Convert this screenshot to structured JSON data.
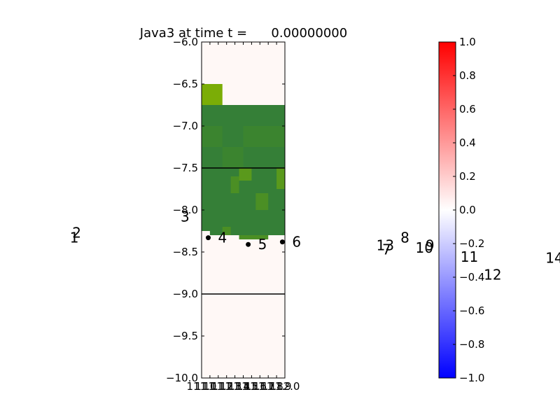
{
  "chart_data": {
    "type": "heatmap",
    "title": "Java3 at time t =      0.00000000",
    "xlabel": "",
    "ylabel": "",
    "xlim": [
      111.0,
      112.0
    ],
    "ylim": [
      -10.0,
      -6.0
    ],
    "x_tick_labels": [
      "111.0",
      "111.1",
      "111.2",
      "111.3",
      "111.4",
      "111.5",
      "111.6",
      "111.7",
      "111.8",
      "111.9",
      "112.0"
    ],
    "y_ticks": [
      -6.0,
      -6.5,
      -7.0,
      -7.5,
      -8.0,
      -8.5,
      -9.0,
      -9.5,
      -10.0
    ],
    "y_tick_labels": [
      "−6.0",
      "−6.5",
      "−7.0",
      "−7.5",
      "−8.0",
      "−8.5",
      "−9.0",
      "−9.5",
      "−10.0"
    ],
    "background_color": "#fff8f6",
    "patches": [
      {
        "x0": 111.0,
        "x1": 111.25,
        "y0": -6.75,
        "y1": -6.5,
        "color": "#7bad06"
      },
      {
        "x0": 111.0,
        "x1": 112.0,
        "y0": -7.5,
        "y1": -6.75,
        "color": "#357f37"
      },
      {
        "x0": 111.0,
        "x1": 111.25,
        "y0": -7.25,
        "y1": -7.0,
        "color": "#3b842f"
      },
      {
        "x0": 111.5,
        "x1": 112.0,
        "y0": -7.25,
        "y1": -7.0,
        "color": "#3b842f"
      },
      {
        "x0": 111.25,
        "x1": 111.5,
        "y0": -7.5,
        "y1": -7.25,
        "color": "#3b842f"
      },
      {
        "x0": 111.0,
        "x1": 112.0,
        "y0": -8.25,
        "y1": -7.5,
        "color": "#357f37"
      },
      {
        "x0": 111.1,
        "x1": 112.0,
        "y0": -8.3,
        "y1": -8.25,
        "color": "#357f37"
      },
      {
        "x0": 111.45,
        "x1": 111.8,
        "y0": -8.35,
        "y1": -8.3,
        "color": "#4b8f24"
      },
      {
        "x0": 111.45,
        "x1": 111.6,
        "y0": -7.65,
        "y1": -7.5,
        "color": "#5a991c"
      },
      {
        "x0": 111.9,
        "x1": 112.0,
        "y0": -7.75,
        "y1": -7.5,
        "color": "#5a991c"
      },
      {
        "x0": 111.35,
        "x1": 111.45,
        "y0": -7.8,
        "y1": -7.6,
        "color": "#4b8f24"
      },
      {
        "x0": 111.65,
        "x1": 111.8,
        "y0": -8.0,
        "y1": -7.8,
        "color": "#4b8f24"
      },
      {
        "x0": 111.25,
        "x1": 111.35,
        "y0": -8.3,
        "y1": -8.2,
        "color": "#4b8f24"
      }
    ],
    "hlines": [
      -7.5,
      -9.0
    ],
    "gauges": [
      {
        "label": "1",
        "x": 109.3,
        "y": -8.33,
        "marker": false
      },
      {
        "label": "2",
        "x": 109.33,
        "y": -8.27,
        "marker": false
      },
      {
        "label": "3",
        "x": 110.63,
        "y": -8.08,
        "marker": false
      },
      {
        "label": "4",
        "x": 111.08,
        "y": -8.33,
        "marker": true
      },
      {
        "label": "5",
        "x": 111.56,
        "y": -8.41,
        "marker": true
      },
      {
        "label": "6",
        "x": 111.97,
        "y": -8.38,
        "marker": true
      },
      {
        "label": "7",
        "x": 113.05,
        "y": -8.47,
        "marker": false
      },
      {
        "label": "8",
        "x": 113.27,
        "y": -8.33,
        "marker": false
      },
      {
        "label": "9",
        "x": 113.57,
        "y": -8.42,
        "marker": false
      },
      {
        "label": "10",
        "x": 113.45,
        "y": -8.45,
        "marker": false
      },
      {
        "label": "11",
        "x": 113.99,
        "y": -8.56,
        "marker": false
      },
      {
        "label": "12",
        "x": 114.27,
        "y": -8.77,
        "marker": false
      },
      {
        "label": "13",
        "x": 112.98,
        "y": -8.42,
        "marker": false
      },
      {
        "label": "14",
        "x": 115.01,
        "y": -8.57,
        "marker": false
      }
    ],
    "colorbar": {
      "vmin": -1.0,
      "vmax": 1.0,
      "ticks": [
        1.0,
        0.8,
        0.6,
        0.4,
        0.2,
        0.0,
        -0.2,
        -0.4,
        -0.6,
        -0.8,
        -1.0
      ],
      "tick_labels": [
        "1.0",
        "0.8",
        "0.6",
        "0.4",
        "0.2",
        "0.0",
        "−0.2",
        "−0.4",
        "−0.6",
        "−0.8",
        "−1.0"
      ],
      "colormap": "bwr",
      "color_low": "#0000ff",
      "color_mid": "#ffffff",
      "color_high": "#ff0000"
    }
  }
}
